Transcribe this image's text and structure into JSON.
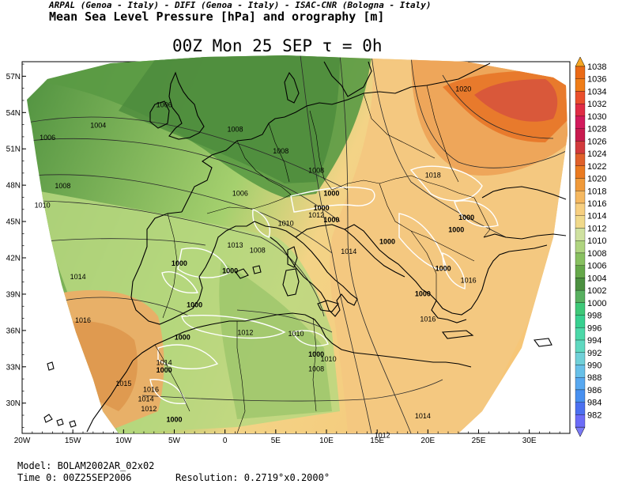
{
  "header": {
    "credits": "ARPAL (Genoa - Italy)  -  DIFI (Genoa - Italy)  -  ISAC-CNR (Bologna - Italy)",
    "subtitle": "Mean Sea Level Pressure [hPa] and orography [m]",
    "title": "00Z Mon 25 SEP  τ = 0h"
  },
  "footer": {
    "model": "Model: BOLAM2002AR_02x02",
    "time": "Time 0: 00Z25SEP2006",
    "resolution": "Resolution: 0.2719°x0.2000°"
  },
  "axes": {
    "lat_labels": [
      "57N",
      "54N",
      "51N",
      "48N",
      "45N",
      "42N",
      "39N",
      "36N",
      "33N",
      "30N"
    ],
    "lon_labels": [
      "20W",
      "15W",
      "10W",
      "5W",
      "0",
      "5E",
      "10E",
      "15E",
      "20E",
      "25E",
      "30E"
    ]
  },
  "colorbar": {
    "levels": [
      "1038",
      "1036",
      "1034",
      "1032",
      "1030",
      "1028",
      "1026",
      "1024",
      "1022",
      "1020",
      "1018",
      "1016",
      "1014",
      "1012",
      "1010",
      "1008",
      "1006",
      "1004",
      "1002",
      "1000",
      "998",
      "996",
      "994",
      "992",
      "990",
      "988",
      "986",
      "984",
      "982"
    ],
    "colors": [
      "#ea6a16",
      "#ef7d18",
      "#ea4f2c",
      "#e02c45",
      "#d21a5c",
      "#c81a4e",
      "#d23a3c",
      "#e0602a",
      "#ea7a20",
      "#f09a3a",
      "#f5b860",
      "#f7cf80",
      "#f0d98a",
      "#cfe1a0",
      "#afd480",
      "#88c060",
      "#66a84a",
      "#4c9040",
      "#58b060",
      "#3ec878",
      "#38d090",
      "#4cd8a8",
      "#60d8c0",
      "#70d0d8",
      "#68c0e8",
      "#58a8f0",
      "#4890f0",
      "#4c70f0",
      "#6c6cf8"
    ],
    "top_arrow_color": "#f6a623",
    "bottom_arrow_color": "#7a7af5"
  },
  "map_labels": {
    "pressure": [
      {
        "t": "1020",
        "lon": 23.5,
        "lat": 55.8
      },
      {
        "t": "1006",
        "lon": -6.0,
        "lat": 54.5
      },
      {
        "t": "1004",
        "lon": -12.5,
        "lat": 52.8
      },
      {
        "t": "1006",
        "lon": -17.5,
        "lat": 51.8
      },
      {
        "t": "1008",
        "lon": 1.0,
        "lat": 52.5
      },
      {
        "t": "1008",
        "lon": 5.5,
        "lat": 50.7
      },
      {
        "t": "1008",
        "lon": 9.0,
        "lat": 49.1
      },
      {
        "t": "1018",
        "lon": 20.5,
        "lat": 48.7
      },
      {
        "t": "1008",
        "lon": -16.0,
        "lat": 47.8
      },
      {
        "t": "1006",
        "lon": 1.5,
        "lat": 47.2
      },
      {
        "t": "1010",
        "lon": -18.0,
        "lat": 46.2
      },
      {
        "t": "1010",
        "lon": 6.0,
        "lat": 44.7
      },
      {
        "t": "1012",
        "lon": 9.0,
        "lat": 45.4
      },
      {
        "t": "1013",
        "lon": 1.0,
        "lat": 42.9
      },
      {
        "t": "1008",
        "lon": 3.2,
        "lat": 42.5
      },
      {
        "t": "1014",
        "lon": 12.2,
        "lat": 42.4
      },
      {
        "t": "1014",
        "lon": -14.5,
        "lat": 40.3
      },
      {
        "t": "1016",
        "lon": 24.0,
        "lat": 40.0
      },
      {
        "t": "1016",
        "lon": -14.0,
        "lat": 36.7
      },
      {
        "t": "1012",
        "lon": 2.0,
        "lat": 35.7
      },
      {
        "t": "1010",
        "lon": 7.0,
        "lat": 35.6
      },
      {
        "t": "1014",
        "lon": -6.0,
        "lat": 33.2
      },
      {
        "t": "1010",
        "lon": 10.2,
        "lat": 33.5
      },
      {
        "t": "1008",
        "lon": 9.0,
        "lat": 32.7
      },
      {
        "t": "1016",
        "lon": 20.0,
        "lat": 36.8
      },
      {
        "t": "1015",
        "lon": -10.0,
        "lat": 31.5
      },
      {
        "t": "1016",
        "lon": -7.3,
        "lat": 31.0
      },
      {
        "t": "1014",
        "lon": -7.8,
        "lat": 30.2
      },
      {
        "t": "1012",
        "lon": -7.5,
        "lat": 29.4
      },
      {
        "t": "1014",
        "lon": 19.5,
        "lat": 28.8
      },
      {
        "t": "1012",
        "lon": 15.5,
        "lat": 27.2
      }
    ],
    "orography": [
      {
        "t": "1000",
        "lon": 10.5,
        "lat": 47.2
      },
      {
        "t": "1000",
        "lon": 9.5,
        "lat": 46.0
      },
      {
        "t": "1000",
        "lon": 10.5,
        "lat": 45.0
      },
      {
        "t": "1000",
        "lon": 23.8,
        "lat": 45.2
      },
      {
        "t": "1000",
        "lon": 22.8,
        "lat": 44.2
      },
      {
        "t": "1000",
        "lon": 16.0,
        "lat": 43.2
      },
      {
        "t": "1000",
        "lon": -4.5,
        "lat": 41.4
      },
      {
        "t": "1000",
        "lon": 0.5,
        "lat": 40.8
      },
      {
        "t": "1000",
        "lon": 21.5,
        "lat": 41.0
      },
      {
        "t": "1000",
        "lon": 19.5,
        "lat": 38.9
      },
      {
        "t": "1000",
        "lon": -3.0,
        "lat": 38.0
      },
      {
        "t": "1000",
        "lon": -4.2,
        "lat": 35.3
      },
      {
        "t": "1000",
        "lon": 9.0,
        "lat": 33.9
      },
      {
        "t": "1000",
        "lon": -6.0,
        "lat": 32.6
      },
      {
        "t": "1000",
        "lon": -5.0,
        "lat": 28.5
      }
    ]
  }
}
